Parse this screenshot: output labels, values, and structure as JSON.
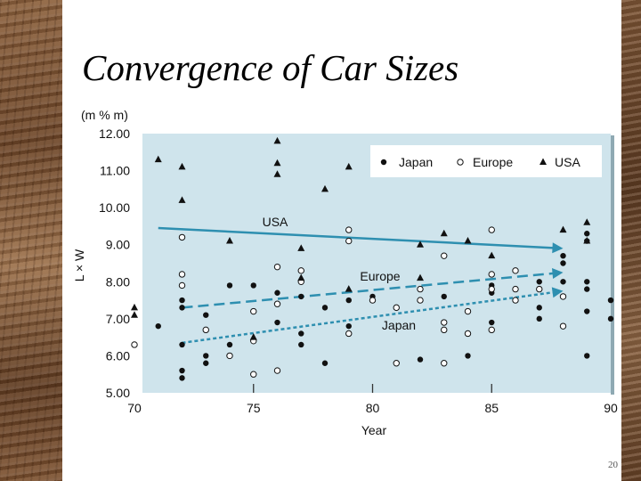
{
  "slide": {
    "title": "Convergence of Car Sizes",
    "page_number": "20"
  },
  "chart_data": {
    "type": "scatter",
    "unit_label": "(m % m)",
    "xlabel": "Year",
    "ylabel": "L × W",
    "xlim": [
      70,
      90
    ],
    "ylim": [
      5,
      12
    ],
    "x_ticks": [
      "70",
      "75",
      "80",
      "85",
      "90"
    ],
    "y_ticks": [
      "5.00",
      "6.00",
      "7.00",
      "8.00",
      "9.00",
      "10.00",
      "11.00",
      "12.00"
    ],
    "legend": {
      "position": "top-right",
      "entries": [
        "Japan",
        "Europe",
        "USA"
      ]
    },
    "colors": {
      "plot_bg": "#cfe4ec",
      "trend": "#2e8fb0",
      "marker": "#111111"
    },
    "series": [
      {
        "name": "Japan",
        "marker": "filled-circle",
        "points": [
          [
            71,
            6.8
          ],
          [
            72,
            5.4
          ],
          [
            72,
            5.6
          ],
          [
            72,
            6.3
          ],
          [
            72,
            7.3
          ],
          [
            72,
            7.5
          ],
          [
            73,
            5.8
          ],
          [
            73,
            6.0
          ],
          [
            73,
            7.1
          ],
          [
            74,
            6.3
          ],
          [
            74,
            7.9
          ],
          [
            75,
            7.9
          ],
          [
            76,
            6.9
          ],
          [
            76,
            7.7
          ],
          [
            77,
            6.3
          ],
          [
            77,
            6.6
          ],
          [
            77,
            7.6
          ],
          [
            78,
            5.8
          ],
          [
            78,
            7.3
          ],
          [
            79,
            6.8
          ],
          [
            79,
            7.5
          ],
          [
            80,
            7.5
          ],
          [
            80,
            7.6
          ],
          [
            82,
            5.9
          ],
          [
            82,
            7.5
          ],
          [
            83,
            7.6
          ],
          [
            84,
            6.0
          ],
          [
            85,
            6.9
          ],
          [
            85,
            7.7
          ],
          [
            85,
            7.9
          ],
          [
            87,
            7.0
          ],
          [
            87,
            7.3
          ],
          [
            87,
            8.0
          ],
          [
            88,
            8.0
          ],
          [
            88,
            8.5
          ],
          [
            88,
            8.7
          ],
          [
            89,
            6.0
          ],
          [
            89,
            7.2
          ],
          [
            89,
            7.8
          ],
          [
            89,
            8.0
          ],
          [
            89,
            9.1
          ],
          [
            89,
            9.3
          ],
          [
            90,
            7.0
          ],
          [
            90,
            7.5
          ]
        ]
      },
      {
        "name": "Europe",
        "marker": "open-circle",
        "points": [
          [
            70,
            6.3
          ],
          [
            72,
            7.9
          ],
          [
            72,
            8.2
          ],
          [
            72,
            9.2
          ],
          [
            73,
            6.7
          ],
          [
            74,
            6.0
          ],
          [
            75,
            5.5
          ],
          [
            75,
            6.4
          ],
          [
            75,
            7.2
          ],
          [
            76,
            5.6
          ],
          [
            76,
            7.4
          ],
          [
            76,
            8.4
          ],
          [
            77,
            8.0
          ],
          [
            77,
            8.3
          ],
          [
            79,
            6.6
          ],
          [
            79,
            9.1
          ],
          [
            79,
            9.4
          ],
          [
            80,
            7.5
          ],
          [
            81,
            5.8
          ],
          [
            81,
            7.3
          ],
          [
            82,
            7.5
          ],
          [
            82,
            7.8
          ],
          [
            83,
            5.8
          ],
          [
            83,
            6.7
          ],
          [
            83,
            6.9
          ],
          [
            83,
            8.7
          ],
          [
            84,
            6.6
          ],
          [
            84,
            7.2
          ],
          [
            85,
            6.7
          ],
          [
            85,
            7.8
          ],
          [
            85,
            8.2
          ],
          [
            85,
            9.4
          ],
          [
            86,
            7.5
          ],
          [
            86,
            7.8
          ],
          [
            86,
            8.3
          ],
          [
            87,
            7.8
          ],
          [
            88,
            6.8
          ],
          [
            88,
            7.6
          ]
        ]
      },
      {
        "name": "USA",
        "marker": "filled-triangle",
        "points": [
          [
            70,
            7.1
          ],
          [
            70,
            7.3
          ],
          [
            71,
            11.3
          ],
          [
            72,
            10.2
          ],
          [
            72,
            11.1
          ],
          [
            74,
            9.1
          ],
          [
            75,
            6.5
          ],
          [
            76,
            10.9
          ],
          [
            76,
            11.2
          ],
          [
            76,
            11.8
          ],
          [
            77,
            8.1
          ],
          [
            77,
            8.9
          ],
          [
            78,
            10.5
          ],
          [
            79,
            7.8
          ],
          [
            79,
            11.1
          ],
          [
            82,
            8.1
          ],
          [
            82,
            9.0
          ],
          [
            83,
            9.3
          ],
          [
            84,
            9.1
          ],
          [
            85,
            8.7
          ],
          [
            88,
            9.4
          ],
          [
            89,
            9.1
          ],
          [
            89,
            9.6
          ]
        ]
      }
    ],
    "trend_lines": [
      {
        "label": "USA",
        "style": "solid",
        "from": [
          71,
          9.45
        ],
        "to": [
          88,
          8.9
        ]
      },
      {
        "label": "Europe",
        "style": "dashed",
        "from": [
          72,
          7.3
        ],
        "to": [
          88,
          8.25
        ]
      },
      {
        "label": "Japan",
        "style": "dotted",
        "from": [
          72,
          6.35
        ],
        "to": [
          88,
          7.75
        ]
      }
    ]
  }
}
